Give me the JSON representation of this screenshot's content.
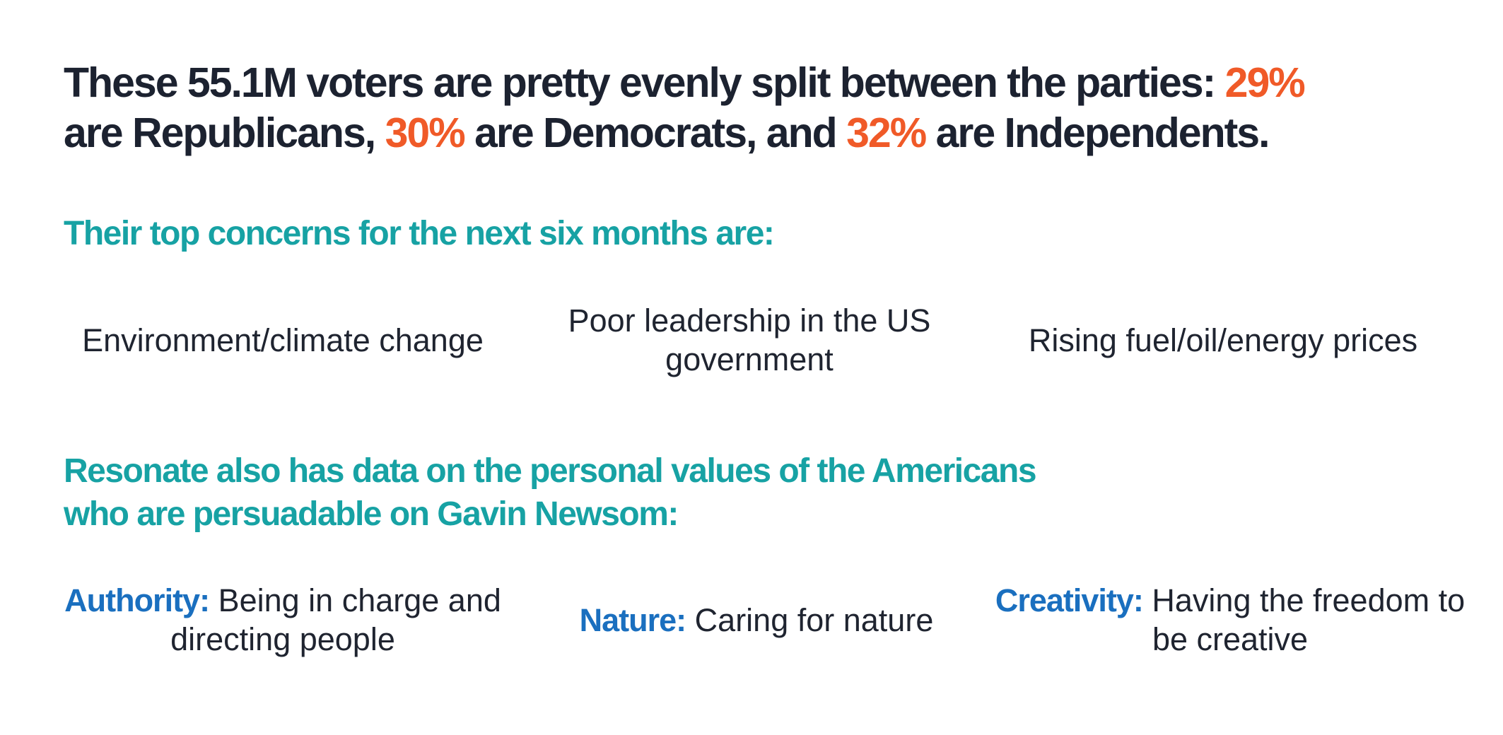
{
  "headline": {
    "part1": "These 55.1M voters are pretty evenly split between the parties: ",
    "pct_republicans": "29%",
    "part2": " are Republicans, ",
    "pct_democrats": "30%",
    "part3": " are Democrats, and ",
    "pct_independents": "32%",
    "part4": " are Independents."
  },
  "concerns": {
    "heading": "Their top concerns for the next six months are:",
    "items": [
      "Environment/climate change",
      "Poor leadership in the US government",
      "Rising fuel/oil/energy prices"
    ]
  },
  "values": {
    "heading": "Resonate also has data on the personal values of the Americans who are persuadable on Gavin Newsom:",
    "items": [
      {
        "label": "Authority:",
        "description": " Being in charge and directing people"
      },
      {
        "label": "Nature:",
        "description": " Caring for nature"
      },
      {
        "label": "Creativity:",
        "description": " Having the freedom to be creative"
      }
    ]
  },
  "colors": {
    "headline_text": "#1c2230",
    "percent_highlight": "#f05a28",
    "section_heading": "#17a2a4",
    "value_label": "#1a6fbf"
  }
}
